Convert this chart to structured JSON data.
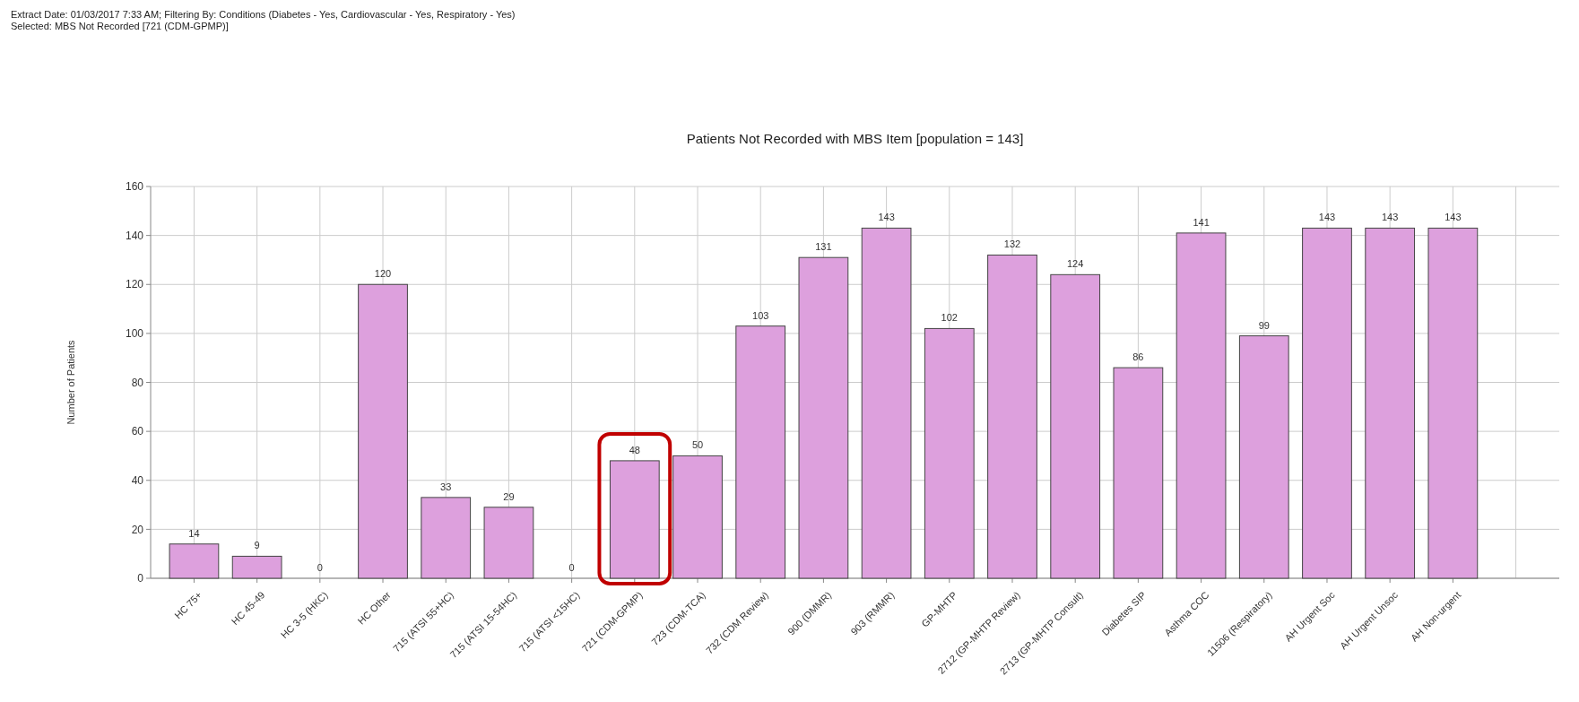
{
  "chart_data": {
    "type": "bar",
    "title": "Patients Not Recorded with MBS Item [population = 143]",
    "ylabel": "Number of Patients",
    "annotations": [
      "Extract Date: 01/03/2017 7:33 AM; Filtering By: Conditions (Diabetes - Yes, Cardiovascular - Yes, Respiratory - Yes)",
      "Selected: MBS Not Recorded [721 (CDM-GPMP)]"
    ],
    "categories": [
      "HC 75+",
      "HC 45-49",
      "HC 3-5 (HKC)",
      "HC Other",
      "715 (ATSI 55+HC)",
      "715 (ATSI 15-54HC)",
      "715 (ATSI <15HC)",
      "721 (CDM-GPMP)",
      "723 (CDM-TCA)",
      "732 (CDM Review)",
      "900 (DMMR)",
      "903 (RMMR)",
      "GP-MHTP",
      "2712 (GP-MHTP Review)",
      "2713 (GP-MHTP Consult)",
      "Diabetes SIP",
      "Asthma COC",
      "11506 (Respiratory)",
      "AH Urgent Soc",
      "AH Urgent Unsoc",
      "AH Non-urgent"
    ],
    "values": [
      14,
      9,
      0,
      120,
      33,
      29,
      0,
      48,
      50,
      103,
      131,
      143,
      102,
      132,
      124,
      86,
      141,
      99,
      143,
      143,
      143
    ],
    "color": "#dda0dd",
    "data_labels": true,
    "grid": true,
    "ylim": [
      0,
      160
    ],
    "yticks": [
      0,
      20,
      40,
      60,
      80,
      100,
      120,
      140,
      160
    ]
  }
}
